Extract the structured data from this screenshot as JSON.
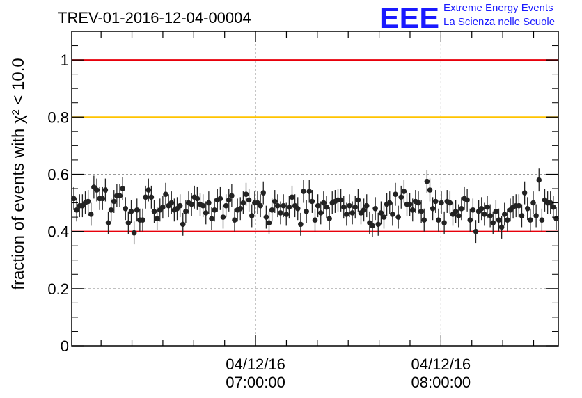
{
  "logo": {
    "mark": "EEE",
    "line1": "Extreme Energy Events",
    "line2": "La Scienza nelle Scuole",
    "color": "#1a1aff"
  },
  "chart_data": {
    "type": "scatter",
    "title": "TREV-01-2016-12-04-00004",
    "xlabel": "",
    "ylabel": "fraction of events with χ² < 10.0",
    "x_axis": {
      "type": "time",
      "start": "04/12/16 06:00:30",
      "end": "04/12/16 08:38:00",
      "major_ticks": [
        {
          "value": "04/12/16 07:00:00",
          "label_date": "04/12/16",
          "label_time": "07:00:00"
        },
        {
          "value": "04/12/16 08:00:00",
          "label_date": "04/12/16",
          "label_time": "08:00:00"
        }
      ]
    },
    "ylim": [
      0,
      1.1
    ],
    "yticks": [
      0,
      0.2,
      0.4,
      0.6,
      0.8,
      1
    ],
    "ytick_labels": [
      "0",
      "0.2",
      "0.4",
      "0.6",
      "0.8",
      "1"
    ],
    "grid": true,
    "reference_lines": [
      {
        "y": 1.0,
        "color": "#e8000b"
      },
      {
        "y": 0.8,
        "color": "#ffc400"
      },
      {
        "y": 0.4,
        "color": "#e8000b"
      }
    ],
    "series": [
      {
        "marker_color": "#222222",
        "y": [
          0.515,
          0.475,
          0.49,
          0.49,
          0.5,
          0.505,
          0.46,
          0.555,
          0.545,
          0.515,
          0.515,
          0.545,
          0.43,
          0.475,
          0.505,
          0.525,
          0.525,
          0.55,
          0.48,
          0.43,
          0.47,
          0.395,
          0.475,
          0.44,
          0.44,
          0.52,
          0.545,
          0.52,
          0.47,
          0.445,
          0.475,
          0.485,
          0.53,
          0.49,
          0.5,
          0.475,
          0.48,
          0.49,
          0.425,
          0.47,
          0.5,
          0.495,
          0.52,
          0.515,
          0.495,
          0.49,
          0.465,
          0.5,
          0.445,
          0.475,
          0.51,
          0.515,
          0.45,
          0.49,
          0.51,
          0.525,
          0.44,
          0.475,
          0.48,
          0.5,
          0.53,
          0.51,
          0.455,
          0.5,
          0.5,
          0.49,
          0.535,
          0.45,
          0.43,
          0.475,
          0.505,
          0.49,
          0.465,
          0.49,
          0.46,
          0.485,
          0.52,
          0.49,
          0.48,
          0.425,
          0.54,
          0.47,
          0.54,
          0.505,
          0.44,
          0.49,
          0.465,
          0.5,
          0.485,
          0.445,
          0.5,
          0.505,
          0.51,
          0.51,
          0.485,
          0.46,
          0.49,
          0.465,
          0.485,
          0.51,
          0.465,
          0.475,
          0.49,
          0.43,
          0.42,
          0.48,
          0.425,
          0.465,
          0.45,
          0.495,
          0.5,
          0.46,
          0.53,
          0.45,
          0.52,
          0.54,
          0.495,
          0.495,
          0.475,
          0.505,
          0.5,
          0.47,
          0.44,
          0.575,
          0.545,
          0.48,
          0.505,
          0.44,
          0.5,
          0.43,
          0.505,
          0.5,
          0.46,
          0.47,
          0.455,
          0.48,
          0.515,
          0.51,
          0.44,
          0.475,
          0.4,
          0.47,
          0.48,
          0.46,
          0.485,
          0.455,
          0.43,
          0.47,
          0.44,
          0.415,
          0.46,
          0.44,
          0.475,
          0.485,
          0.49,
          0.49,
          0.455,
          0.535,
          0.48,
          0.44,
          0.5,
          0.455,
          0.58,
          0.44,
          0.51,
          0.5,
          0.5,
          0.485,
          0.445
        ],
        "err": 0.04
      }
    ]
  }
}
